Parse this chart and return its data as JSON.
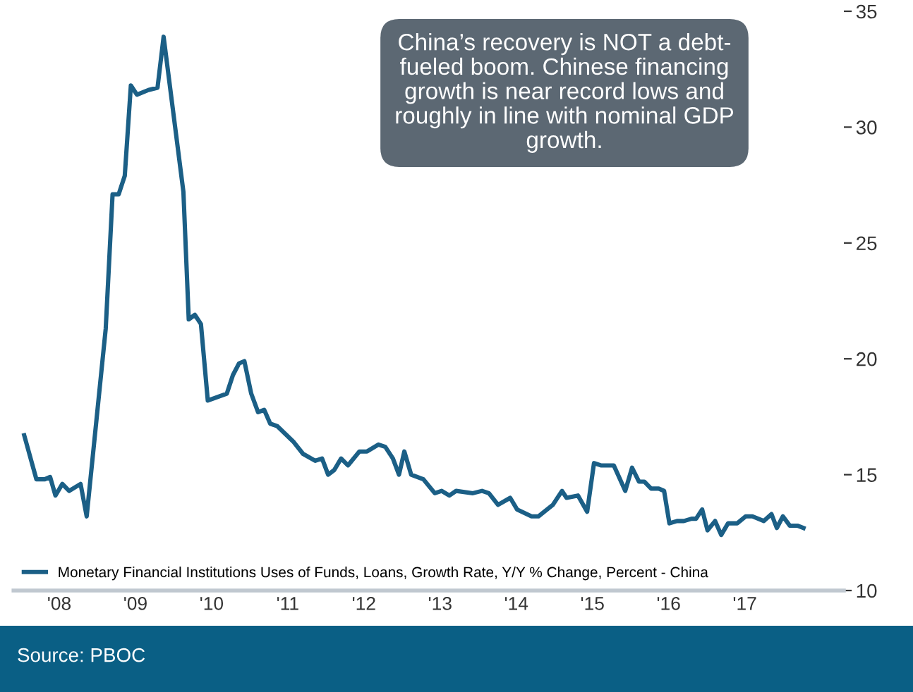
{
  "chart_data": {
    "type": "line",
    "annotations": [
      "China’s recovery is NOT a debt-\nfueled boom. Chinese financing\ngrowth is near record lows and\nroughly in line with nominal GDP\ngrowth.",
      "Source: PBOC"
    ],
    "x": [
      2007.54,
      2007.7,
      2007.81,
      2007.88,
      2007.95,
      2008.04,
      2008.13,
      2008.28,
      2008.36,
      2008.61,
      2008.7,
      2008.78,
      2008.86,
      2008.94,
      2009.02,
      2009.17,
      2009.29,
      2009.37,
      2009.63,
      2009.7,
      2009.78,
      2009.86,
      2009.95,
      2010.2,
      2010.28,
      2010.36,
      2010.43,
      2010.52,
      2010.61,
      2010.69,
      2010.77,
      2010.86,
      2011.08,
      2011.2,
      2011.36,
      2011.45,
      2011.53,
      2011.61,
      2011.7,
      2011.79,
      2011.94,
      2012.04,
      2012.19,
      2012.28,
      2012.38,
      2012.46,
      2012.53,
      2012.62,
      2012.78,
      2012.93,
      2013.02,
      2013.12,
      2013.21,
      2013.43,
      2013.55,
      2013.64,
      2013.76,
      2013.92,
      2014.01,
      2014.2,
      2014.29,
      2014.48,
      2014.6,
      2014.66,
      2014.81,
      2014.93,
      2015.02,
      2015.11,
      2015.28,
      2015.43,
      2015.52,
      2015.61,
      2015.68,
      2015.77,
      2015.87,
      2015.94,
      2016.01,
      2016.11,
      2016.2,
      2016.3,
      2016.36,
      2016.44,
      2016.51,
      2016.61,
      2016.69,
      2016.78,
      2016.9,
      2017.01,
      2017.1,
      2017.25,
      2017.35,
      2017.42,
      2017.5,
      2017.59,
      2017.69,
      2017.77
    ],
    "series": [
      {
        "name": "Monetary Financial Institutions Uses of Funds, Loans, Growth Rate, Y/Y % Change, Percent - China",
        "color": "#1b5f86",
        "values": [
          16.7,
          14.8,
          14.8,
          14.9,
          14.1,
          14.6,
          14.3,
          14.6,
          13.2,
          21.3,
          27.1,
          27.1,
          27.9,
          31.8,
          31.4,
          31.6,
          31.7,
          33.9,
          27.2,
          21.7,
          21.9,
          21.5,
          18.2,
          18.5,
          19.3,
          19.8,
          19.9,
          18.5,
          17.7,
          17.8,
          17.2,
          17.1,
          16.4,
          15.9,
          15.6,
          15.7,
          15.0,
          15.2,
          15.7,
          15.4,
          16.0,
          16.0,
          16.3,
          16.2,
          15.7,
          15.0,
          16.0,
          15.0,
          14.8,
          14.2,
          14.3,
          14.1,
          14.3,
          14.2,
          14.3,
          14.2,
          13.7,
          14.0,
          13.5,
          13.2,
          13.2,
          13.7,
          14.3,
          14.0,
          14.1,
          13.4,
          15.5,
          15.4,
          15.4,
          14.3,
          15.3,
          14.7,
          14.7,
          14.4,
          14.4,
          14.3,
          12.9,
          13.0,
          13.0,
          13.1,
          13.1,
          13.5,
          12.6,
          13.0,
          12.4,
          12.9,
          12.9,
          13.2,
          13.2,
          13.0,
          13.3,
          12.7,
          13.2,
          12.8,
          12.8,
          12.7
        ]
      }
    ],
    "xlim": [
      2007.4,
      2018.3
    ],
    "xticks": [
      {
        "value": 2008,
        "label": "'08"
      },
      {
        "value": 2009,
        "label": "'09"
      },
      {
        "value": 2010,
        "label": "'10"
      },
      {
        "value": 2011,
        "label": "'11"
      },
      {
        "value": 2012,
        "label": "'12"
      },
      {
        "value": 2013,
        "label": "'13"
      },
      {
        "value": 2014,
        "label": "'14"
      },
      {
        "value": 2015,
        "label": "'15"
      },
      {
        "value": 2016,
        "label": "'16"
      },
      {
        "value": 2017,
        "label": "'17"
      }
    ],
    "ylim": [
      10,
      35
    ],
    "yticks": [
      10,
      15,
      20,
      25,
      30,
      35
    ],
    "grid": false,
    "legend": "bottom left",
    "marker": "none",
    "line_style": "solid"
  }
}
